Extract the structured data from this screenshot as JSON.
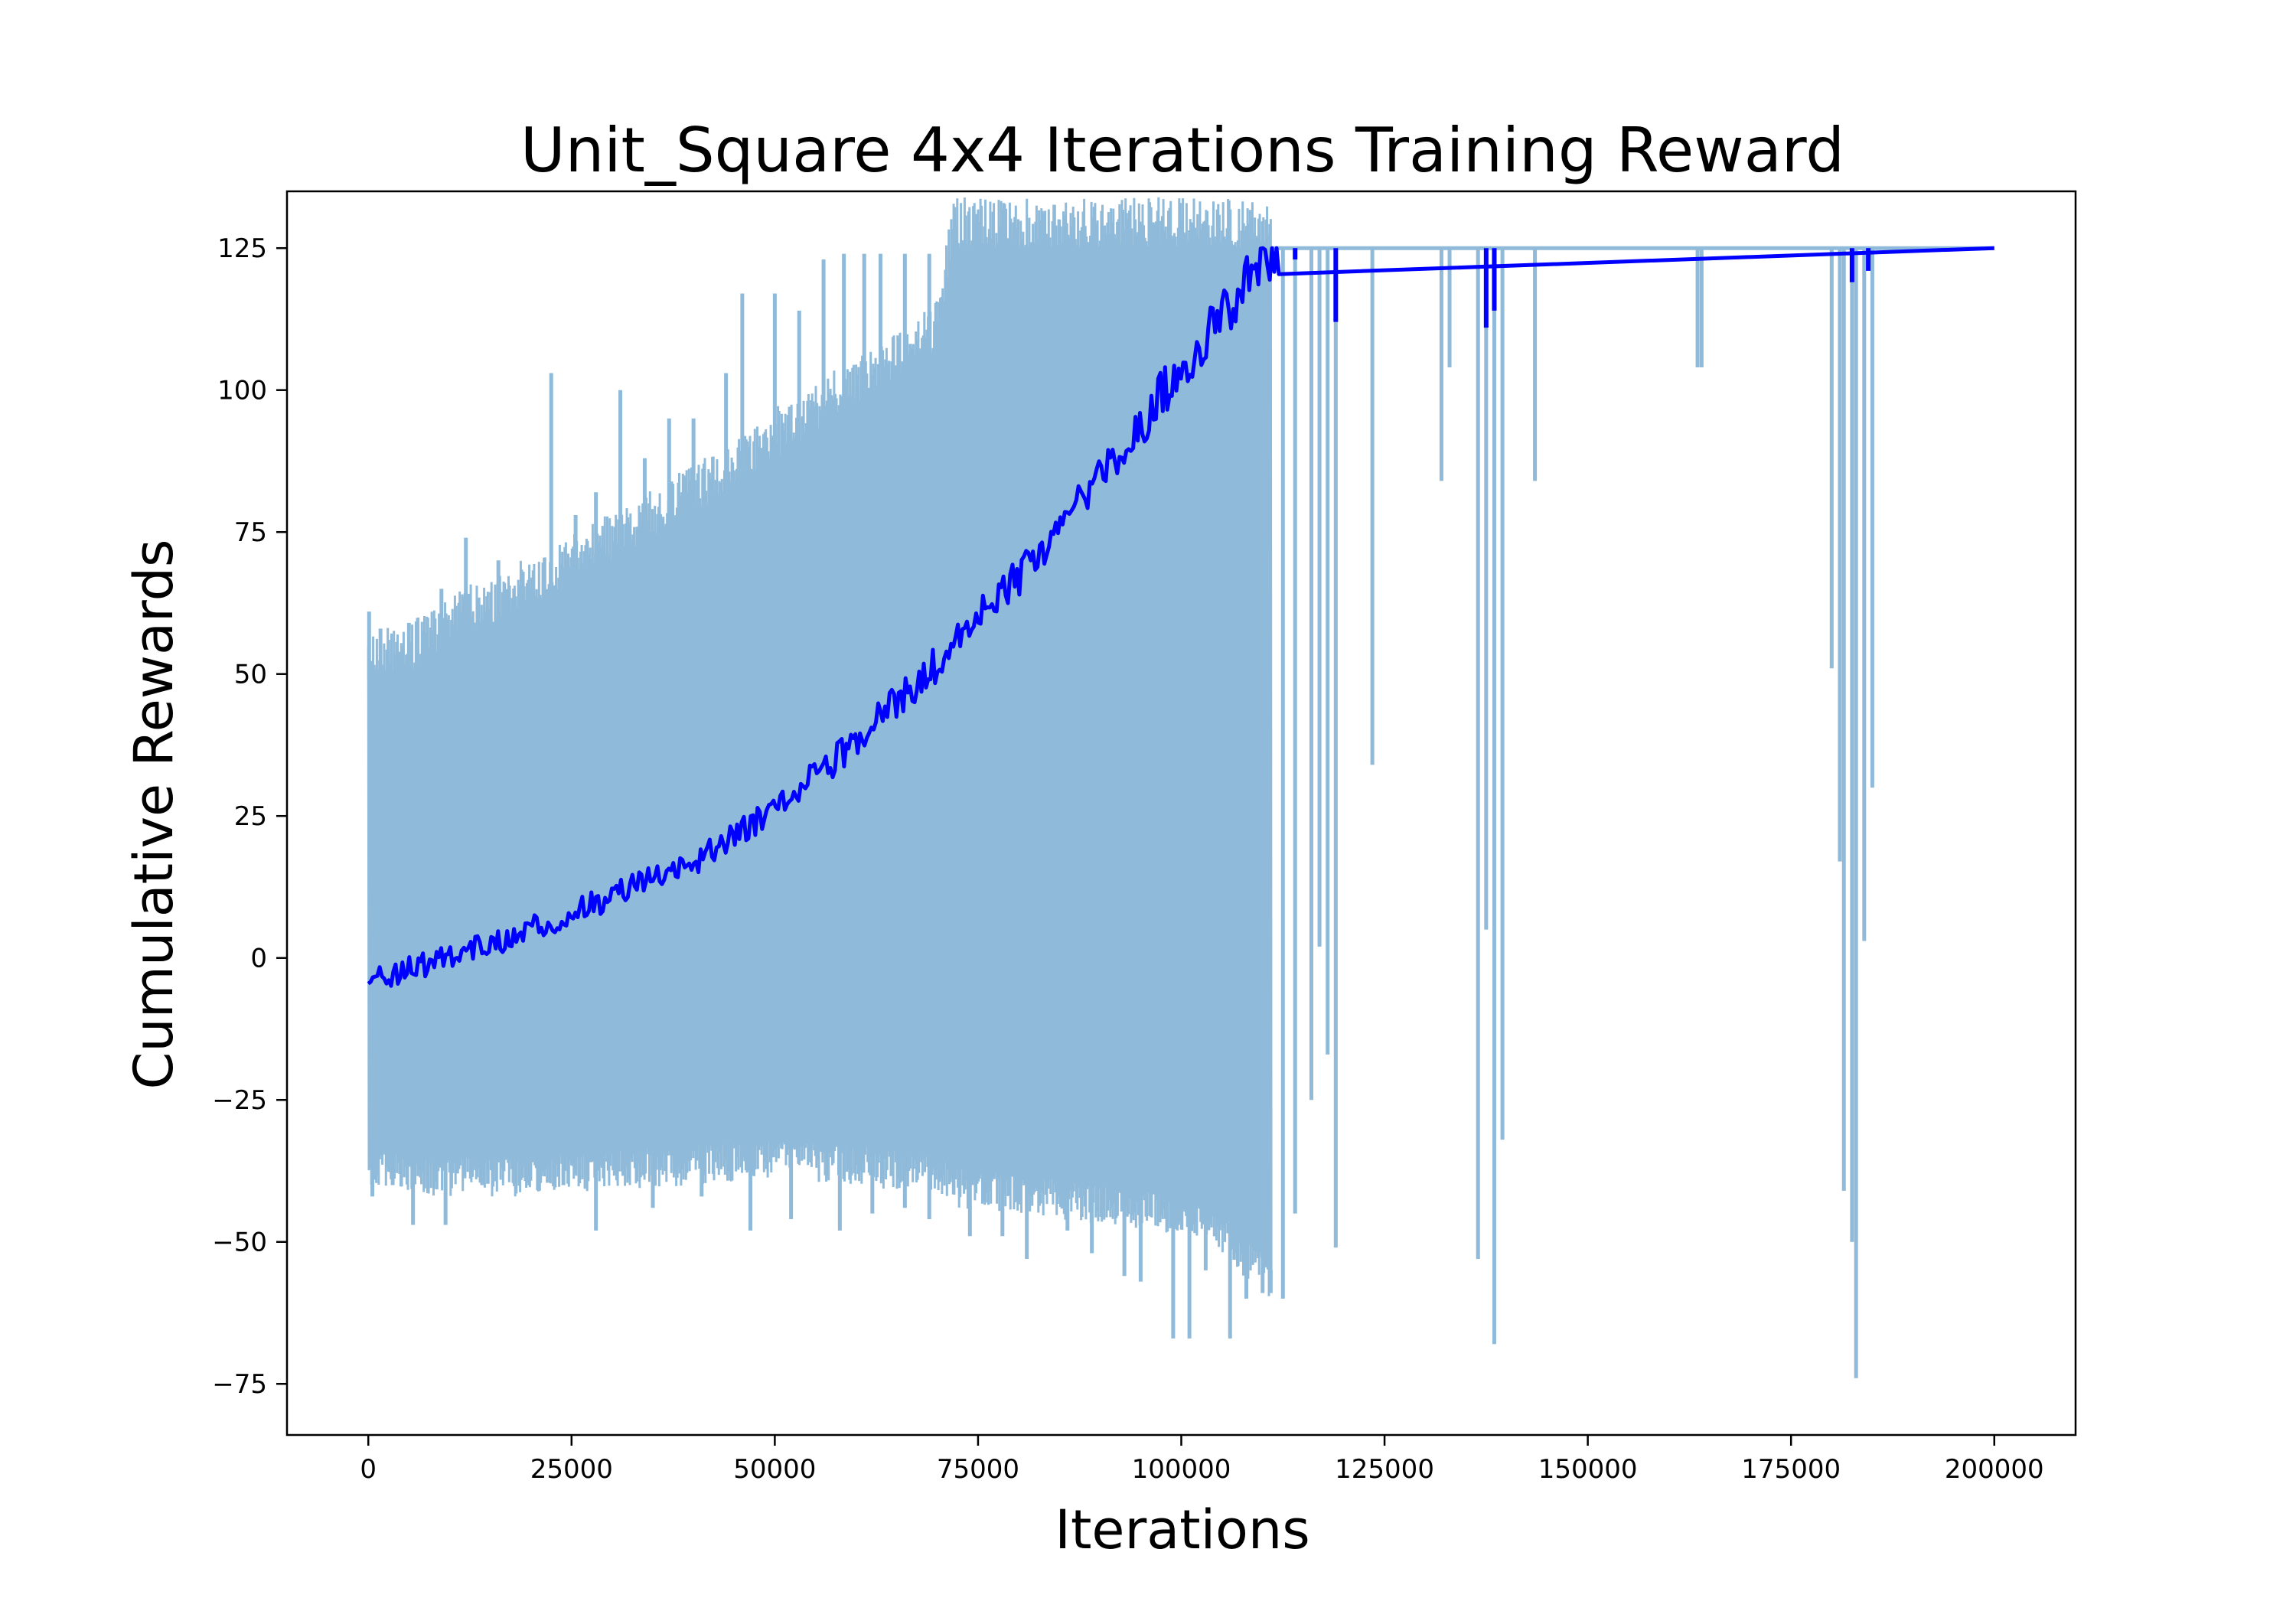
{
  "chart_data": {
    "type": "line",
    "title": "Unit_Square 4x4 Iterations Training Reward",
    "xlabel": "Iterations",
    "ylabel": "Cumulative Rewards",
    "xlim": [
      -10000,
      210000
    ],
    "ylim": [
      -84,
      135
    ],
    "xticks": [
      0,
      25000,
      50000,
      75000,
      100000,
      125000,
      150000,
      175000,
      200000
    ],
    "xtick_labels": [
      "0",
      "25000",
      "50000",
      "75000",
      "100000",
      "125000",
      "150000",
      "175000",
      "200000"
    ],
    "yticks": [
      -75,
      -50,
      -25,
      0,
      25,
      50,
      75,
      100,
      125
    ],
    "ytick_labels": [
      "−75",
      "−50",
      "−25",
      "0",
      "25",
      "50",
      "75",
      "100",
      "125"
    ],
    "grid": false,
    "legend": "none",
    "series": [
      {
        "role": "raw",
        "color": "#8fbad9",
        "band": {
          "x": [
            0,
            5000,
            10000,
            20000,
            30000,
            40000,
            50000,
            60000,
            70000,
            72000,
            80000,
            90000,
            100000,
            105000,
            108000,
            110000,
            111000
          ],
          "upper": [
            49,
            50,
            55,
            62,
            70,
            78,
            88,
            97,
            107,
            125,
            125,
            125,
            125,
            125,
            125,
            125,
            125
          ],
          "lower": [
            -33,
            -35,
            -35,
            -35,
            -34,
            -33,
            -32,
            -33,
            -35,
            -37,
            -38,
            -40,
            -42,
            -45,
            -50,
            -52,
            -55
          ]
        },
        "upper_spikes": [
          [
            100,
            61
          ],
          [
            1500,
            58
          ],
          [
            5000,
            59
          ],
          [
            9000,
            65
          ],
          [
            12000,
            74
          ],
          [
            16000,
            70
          ],
          [
            19000,
            68
          ],
          [
            22500,
            103
          ],
          [
            25500,
            78
          ],
          [
            28000,
            82
          ],
          [
            31000,
            100
          ],
          [
            34000,
            88
          ],
          [
            37000,
            95
          ],
          [
            40000,
            95
          ],
          [
            44000,
            103
          ],
          [
            46000,
            117
          ],
          [
            50000,
            117
          ],
          [
            53000,
            114
          ],
          [
            56000,
            123
          ],
          [
            58500,
            124
          ],
          [
            61000,
            124
          ],
          [
            63000,
            124
          ],
          [
            66000,
            124
          ],
          [
            69000,
            124
          ]
        ],
        "lower_spikes": [
          [
            500,
            -42
          ],
          [
            3000,
            -40
          ],
          [
            5500,
            -47
          ],
          [
            9500,
            -47
          ],
          [
            14000,
            -40
          ],
          [
            18000,
            -40
          ],
          [
            21000,
            -41
          ],
          [
            24000,
            -40
          ],
          [
            28000,
            -48
          ],
          [
            35000,
            -44
          ],
          [
            41000,
            -42
          ],
          [
            47000,
            -48
          ],
          [
            52000,
            -46
          ],
          [
            58000,
            -48
          ],
          [
            62000,
            -45
          ],
          [
            66000,
            -44
          ],
          [
            69000,
            -46
          ],
          [
            74000,
            -49
          ],
          [
            78000,
            -49
          ],
          [
            81000,
            -53
          ],
          [
            86000,
            -48
          ],
          [
            89000,
            -52
          ],
          [
            93000,
            -56
          ],
          [
            95000,
            -57
          ],
          [
            99000,
            -67
          ],
          [
            101000,
            -67
          ],
          [
            103000,
            -55
          ],
          [
            106000,
            -67
          ],
          [
            108000,
            -60
          ],
          [
            110000,
            -59
          ],
          [
            111000,
            -59
          ],
          [
            112500,
            -60
          ],
          [
            114000,
            -45
          ],
          [
            116000,
            -25
          ],
          [
            117000,
            2
          ],
          [
            118000,
            -17
          ],
          [
            119000,
            -51
          ],
          [
            123500,
            34
          ],
          [
            132000,
            84
          ],
          [
            133000,
            104
          ],
          [
            136500,
            -53
          ],
          [
            137500,
            5
          ],
          [
            138500,
            -68
          ],
          [
            139500,
            -32
          ],
          [
            143500,
            84
          ],
          [
            163500,
            104
          ],
          [
            164000,
            104
          ],
          [
            180000,
            51
          ],
          [
            181000,
            17
          ],
          [
            181500,
            -41
          ],
          [
            182500,
            -50
          ],
          [
            183000,
            -74
          ],
          [
            184000,
            3
          ],
          [
            185000,
            30
          ]
        ]
      },
      {
        "role": "mean",
        "color": "#0000ff",
        "points": [
          [
            0,
            -4
          ],
          [
            10000,
            0
          ],
          [
            20000,
            5
          ],
          [
            30000,
            11
          ],
          [
            40000,
            17
          ],
          [
            50000,
            26
          ],
          [
            60000,
            38
          ],
          [
            70000,
            52
          ],
          [
            80000,
            67
          ],
          [
            90000,
            84
          ],
          [
            100000,
            104
          ],
          [
            106000,
            115
          ],
          [
            110000,
            123
          ],
          [
            112000,
            125
          ],
          [
            200000,
            125
          ]
        ],
        "dips": [
          [
            114000,
            123
          ],
          [
            119000,
            112
          ],
          [
            137500,
            111
          ],
          [
            138500,
            114
          ],
          [
            182500,
            119
          ],
          [
            184500,
            121
          ]
        ]
      }
    ]
  }
}
